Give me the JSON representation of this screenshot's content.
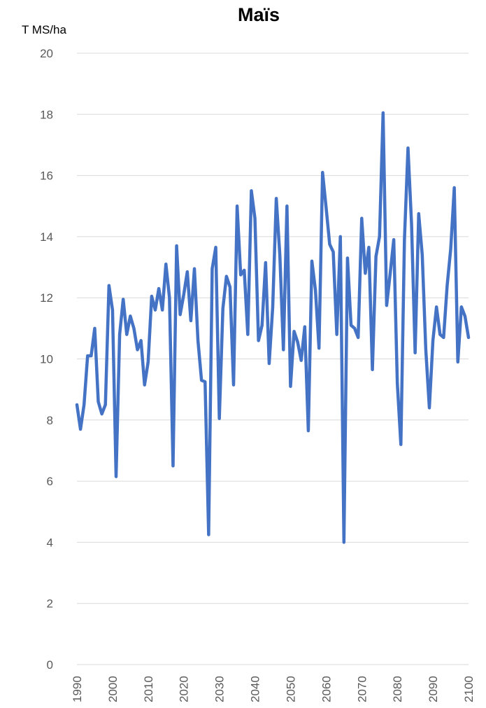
{
  "chart_data": {
    "type": "line",
    "title": "Maïs",
    "ylabel": "T MS/ha",
    "xlabel": "",
    "ylim": [
      0,
      20
    ],
    "xlim": [
      1990,
      2100
    ],
    "yticks": [
      0,
      2,
      4,
      6,
      8,
      10,
      12,
      14,
      16,
      18,
      20
    ],
    "xticks": [
      1990,
      2000,
      2010,
      2020,
      2030,
      2040,
      2050,
      2060,
      2070,
      2080,
      2090,
      2100
    ],
    "grid": "horizontal",
    "legend": "none",
    "colors": {
      "series": "#4472c4",
      "grid": "#d9d9d9",
      "tick_text": "#595959"
    },
    "series": [
      {
        "x": [
          1990,
          1991,
          1992,
          1993,
          1994,
          1995,
          1996,
          1997,
          1998,
          1999,
          2000,
          2001,
          2002,
          2003,
          2004,
          2005,
          2006,
          2007,
          2008,
          2009,
          2010,
          2011,
          2012,
          2013,
          2014,
          2015,
          2016,
          2017,
          2018,
          2019,
          2020,
          2021,
          2022,
          2023,
          2024,
          2025,
          2026,
          2027,
          2028,
          2029,
          2030,
          2031,
          2032,
          2033,
          2034,
          2035,
          2036,
          2037,
          2038,
          2039,
          2040,
          2041,
          2042,
          2043,
          2044,
          2045,
          2046,
          2047,
          2048,
          2049,
          2050,
          2051,
          2052,
          2053,
          2054,
          2055,
          2056,
          2057,
          2058,
          2059,
          2060,
          2061,
          2062,
          2063,
          2064,
          2065,
          2066,
          2067,
          2068,
          2069,
          2070,
          2071,
          2072,
          2073,
          2074,
          2075,
          2076,
          2077,
          2078,
          2079,
          2080,
          2081,
          2082,
          2083,
          2084,
          2085,
          2086,
          2087,
          2088,
          2089,
          2090,
          2091,
          2092,
          2093,
          2094,
          2095,
          2096,
          2097,
          2098,
          2099,
          2100
        ],
        "y": [
          8.5,
          7.7,
          8.5,
          10.1,
          10.1,
          11.0,
          8.6,
          8.2,
          8.5,
          12.4,
          11.6,
          6.15,
          10.8,
          11.95,
          10.8,
          11.4,
          11.0,
          10.3,
          10.6,
          9.15,
          9.9,
          12.05,
          11.6,
          12.3,
          11.6,
          13.1,
          12.0,
          6.5,
          13.7,
          11.45,
          12.1,
          12.85,
          11.25,
          12.95,
          10.6,
          9.3,
          9.25,
          4.25,
          12.95,
          13.65,
          8.05,
          11.65,
          12.7,
          12.35,
          9.15,
          15.0,
          12.75,
          12.9,
          10.8,
          15.5,
          14.6,
          10.6,
          11.1,
          13.15,
          9.85,
          11.7,
          15.25,
          13.4,
          10.3,
          15.0,
          9.1,
          10.9,
          10.55,
          9.95,
          11.05,
          7.65,
          13.2,
          12.25,
          10.35,
          16.1,
          14.95,
          13.75,
          13.5,
          10.8,
          14.0,
          4.0,
          13.3,
          11.1,
          11.0,
          10.7,
          14.6,
          12.8,
          13.65,
          9.65,
          13.35,
          14.0,
          18.05,
          11.75,
          12.8,
          13.9,
          9.2,
          7.2,
          13.9,
          16.9,
          14.4,
          10.2,
          14.75,
          13.4,
          10.3,
          8.4,
          10.6,
          11.7,
          10.8,
          10.7,
          12.4,
          13.6,
          15.6,
          9.9,
          11.7,
          11.4,
          10.7
        ]
      }
    ]
  }
}
